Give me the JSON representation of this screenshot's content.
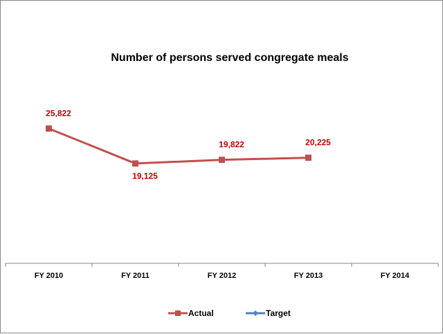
{
  "chart_data": {
    "type": "line",
    "title": "Number of persons served congregate meals",
    "xlabel": "",
    "ylabel": "",
    "categories": [
      "FY 2010",
      "FY 2011",
      "FY 2012",
      "FY 2013",
      "FY 2014"
    ],
    "ylim": [
      0,
      30000
    ],
    "grid": false,
    "y_axis_visible": false,
    "series": [
      {
        "name": "Actual",
        "color": "#C0504D",
        "marker": "square",
        "values": [
          25822,
          19125,
          19822,
          20225,
          null
        ],
        "data_labels": [
          "25,822",
          "19,125",
          "19,822",
          "20,225",
          null
        ],
        "label_position": [
          "above",
          "below",
          "above",
          "above",
          null
        ],
        "label_color": "#C00000"
      },
      {
        "name": "Target",
        "color": "#4F81BD",
        "marker": "diamond",
        "values": [
          null,
          null,
          null,
          null,
          null
        ],
        "data_labels": [
          null,
          null,
          null,
          null,
          null
        ]
      }
    ],
    "legend": {
      "position": "bottom",
      "entries": [
        "Actual",
        "Target"
      ]
    }
  }
}
